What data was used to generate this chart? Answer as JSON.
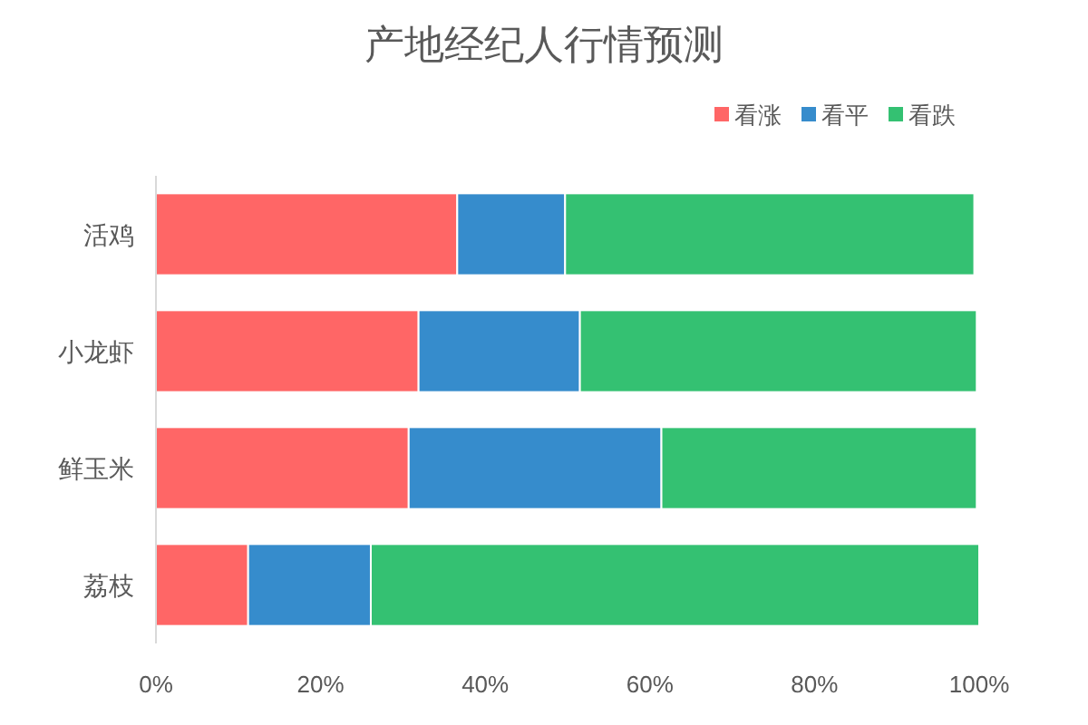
{
  "chart_data": {
    "type": "bar",
    "title": "产地经纪人行情预测",
    "orientation": "horizontal",
    "stacked": true,
    "categories": [
      "活鸡",
      "小龙虾",
      "鲜玉米",
      "荔枝"
    ],
    "series": [
      {
        "name": "看涨",
        "color": "#ff6666",
        "values": [
          36.6,
          31.9,
          30.7,
          11.2
        ]
      },
      {
        "name": "看平",
        "color": "#368ccc",
        "values": [
          13.1,
          19.6,
          30.7,
          14.9
        ]
      },
      {
        "name": "看跌",
        "color": "#34c172",
        "values": [
          49.7,
          48.2,
          38.3,
          73.9
        ]
      }
    ],
    "xlim": [
      0,
      100
    ],
    "xticks": [
      {
        "value": 0,
        "label": "0%"
      },
      {
        "value": 20,
        "label": "20%"
      },
      {
        "value": 40,
        "label": "40%"
      },
      {
        "value": 60,
        "label": "60%"
      },
      {
        "value": 80,
        "label": "80%"
      },
      {
        "value": 100,
        "label": "100%"
      }
    ],
    "legend": "top right",
    "grid": false
  }
}
